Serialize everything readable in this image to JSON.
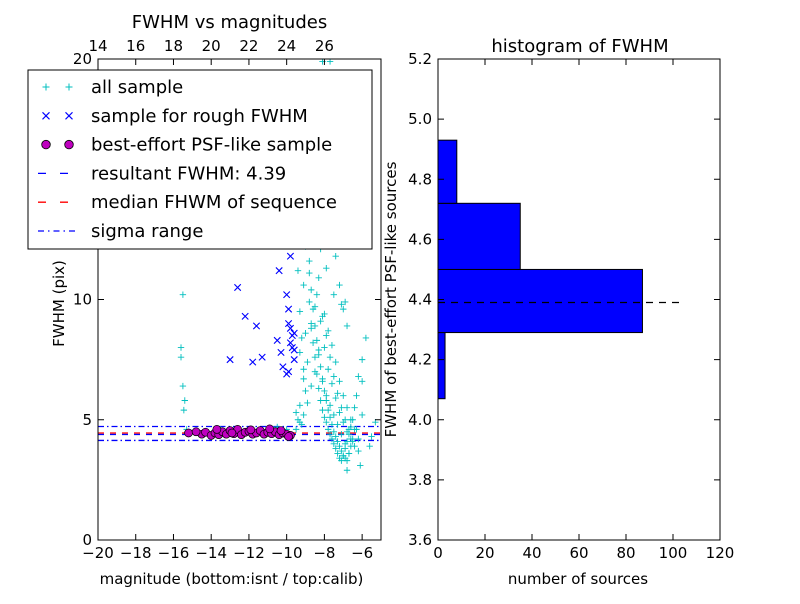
{
  "chart_data": [
    {
      "type": "scatter",
      "title": "FWHM vs magnitudes",
      "xlabel": "magnitude (bottom:isnt / top:calib)",
      "ylabel": "FWHM (pix)",
      "xlim": [
        -20,
        -5
      ],
      "ylim": [
        0,
        20
      ],
      "x_ticks": [
        -20,
        -18,
        -16,
        -14,
        -12,
        -10,
        -8,
        -6
      ],
      "x_tick_labels": [
        "−20",
        "−18",
        "−16",
        "−14",
        "−12",
        "−10",
        "−8",
        "−6"
      ],
      "y_ticks": [
        0,
        5,
        10,
        20
      ],
      "y_tick_labels": [
        "0",
        "5",
        "10",
        "20"
      ],
      "top_ticks": [
        14,
        16,
        18,
        20,
        22,
        24,
        26
      ],
      "top_tick_labels": [
        "14",
        "16",
        "18",
        "20",
        "22",
        "24",
        "26"
      ],
      "top_axis_offset": 34,
      "legend": {
        "placement": "upper-left",
        "entries": [
          {
            "label": "all sample",
            "marker": "+",
            "color": "#00bfbf"
          },
          {
            "label": "sample for rough FWHM",
            "marker": "x",
            "color": "#0000ff"
          },
          {
            "label": "best-effort PSF-like sample",
            "marker": "o",
            "color": "#bf00bf"
          },
          {
            "label": "resultant FWHM: 4.39",
            "style": "dashed",
            "color": "#0000ff"
          },
          {
            "label": "median FHWM of sequence",
            "style": "dashed",
            "color": "#ff0000"
          },
          {
            "label": "sigma range",
            "style": "dashdot",
            "color": "#0000ff"
          }
        ]
      },
      "hlines": [
        {
          "y": 4.39,
          "style": "dashed",
          "color": "#0000ff"
        },
        {
          "y": 4.45,
          "style": "dashed",
          "color": "#ff0000"
        },
        {
          "y": 4.72,
          "style": "dashdot",
          "color": "#0000ff"
        },
        {
          "y": 4.14,
          "style": "dashdot",
          "color": "#0000ff"
        }
      ],
      "series": [
        {
          "name": "all sample",
          "marker": "+",
          "color": "#00bfbf",
          "x": [
            -15.6,
            -15.6,
            -15.5,
            -15.45,
            -15.4,
            -15.5,
            -15.3,
            -14.9,
            -14.3,
            -13.5,
            -12.8,
            -12.0,
            -11.3,
            -10.5,
            -10.0,
            -9.6,
            -9.5,
            -9.4,
            -9.3,
            -9.2,
            -9.1,
            -9.0,
            -9.3,
            -9.5,
            -9.4,
            -9.2,
            -9.1,
            -9.0,
            -8.9,
            -8.8,
            -8.8,
            -8.7,
            -8.6,
            -8.5,
            -8.4,
            -8.3,
            -8.2,
            -8.1,
            -8.0,
            -7.9,
            -7.8,
            -7.7,
            -7.6,
            -7.5,
            -7.4,
            -7.3,
            -7.2,
            -7.1,
            -7.0,
            -6.9,
            -6.8,
            -6.7,
            -6.6,
            -6.5,
            -6.4,
            -6.3,
            -6.2,
            -6.0,
            -5.8,
            -5.5,
            -9.4,
            -9.2,
            -9.0,
            -8.9,
            -8.8,
            -8.7,
            -8.6,
            -8.5,
            -8.4,
            -8.3,
            -8.2,
            -8.1,
            -8.0,
            -7.9,
            -7.8,
            -7.7,
            -7.6,
            -7.5,
            -7.4,
            -7.3,
            -7.2,
            -7.1,
            -7.0,
            -6.9,
            -6.8,
            -6.7,
            -6.6,
            -6.5,
            -6.3,
            -6.0,
            -9.3,
            -9.0,
            -8.8,
            -8.6,
            -8.4,
            -8.2,
            -8.0,
            -7.8,
            -7.6,
            -7.4,
            -7.2,
            -7.0,
            -6.8,
            -6.6,
            -6.4,
            -9.1,
            -8.9,
            -8.7,
            -8.5,
            -8.3,
            -8.1,
            -7.9,
            -7.7,
            -7.5,
            -7.3,
            -7.1,
            -6.9,
            -6.7,
            -6.5,
            -6.2,
            -9.5,
            -9.3,
            -9.1,
            -8.9,
            -8.7,
            -8.5,
            -8.3,
            -8.1,
            -7.9,
            -7.7,
            -7.5,
            -7.3,
            -7.1,
            -6.9,
            -6.7,
            -8.0,
            -7.8,
            -7.6,
            -7.4,
            -7.2,
            -7.0,
            -6.8,
            -6.6,
            -6.4,
            -6.2,
            -8.2,
            -7.9,
            -7.5,
            -7.1,
            -6.9,
            -8.6,
            -8.4,
            -8.2,
            -8.0,
            -7.8,
            -7.6,
            -7.4,
            -7.2,
            -7.0,
            -6.8,
            -6.0,
            -5.6,
            -5.3,
            -6.1,
            -6.8,
            -8.1,
            -7.7,
            -7.3
          ],
          "y": [
            8.0,
            7.6,
            6.4,
            5.4,
            5.8,
            10.2,
            4.6,
            4.5,
            4.5,
            4.6,
            4.5,
            4.6,
            4.5,
            4.7,
            4.6,
            12.5,
            13.8,
            11.2,
            9.5,
            8.4,
            7.1,
            6.2,
            5.6,
            5.3,
            5.0,
            4.8,
            10.6,
            12.2,
            14.8,
            13.1,
            9.9,
            9.0,
            8.2,
            7.6,
            6.9,
            6.3,
            5.8,
            5.4,
            5.1,
            4.9,
            4.6,
            4.4,
            4.2,
            4.0,
            3.8,
            3.6,
            3.4,
            3.3,
            3.5,
            3.8,
            4.1,
            4.4,
            4.7,
            5.0,
            5.5,
            6.0,
            6.8,
            7.5,
            8.4,
            4.3,
            15.1,
            16.2,
            13.6,
            12.3,
            11.1,
            10.4,
            9.6,
            8.9,
            8.3,
            7.7,
            7.2,
            6.7,
            6.2,
            5.8,
            5.4,
            5.1,
            4.8,
            4.5,
            4.3,
            4.1,
            3.9,
            3.7,
            3.5,
            3.4,
            3.3,
            3.6,
            3.9,
            4.2,
            4.6,
            5.2,
            7.8,
            8.6,
            11.6,
            12.8,
            10.2,
            9.1,
            8.0,
            7.1,
            6.5,
            5.9,
            5.3,
            4.9,
            4.5,
            4.2,
            3.9,
            6.7,
            7.4,
            8.8,
            9.7,
            10.9,
            9.3,
            8.5,
            7.6,
            6.8,
            6.1,
            5.5,
            5.0,
            4.6,
            4.1,
            3.7,
            4.6,
            4.9,
            5.2,
            5.7,
            6.4,
            7.0,
            7.9,
            6.6,
            6.0,
            5.6,
            5.2,
            4.8,
            4.4,
            4.0,
            3.6,
            9.4,
            8.7,
            8.1,
            7.4,
            6.6,
            6.0,
            5.5,
            5.0,
            4.6,
            4.2,
            12.1,
            11.3,
            10.2,
            9.8,
            9.9,
            17.5,
            18.6,
            16.4,
            15.2,
            13.4,
            12.7,
            11.8,
            10.6,
            9.6,
            8.9,
            6.6,
            3.9,
            4.9,
            3.1,
            2.9,
            19.9,
            19.9,
            14.2
          ]
        },
        {
          "name": "sample for rough FWHM",
          "marker": "x",
          "color": "#0000ff",
          "x": [
            -12.6,
            -12.2,
            -11.6,
            -11.4,
            -11.0,
            -10.6,
            -10.4,
            -10.0,
            -9.9,
            -9.8,
            -9.7,
            -9.7,
            -9.6,
            -9.6,
            -9.9,
            -10.2,
            -11.3,
            -11.8,
            -13.0,
            -10.5,
            -9.8,
            -9.7,
            -10.1,
            -9.9,
            -11.1,
            -10.8,
            -9.6,
            -10.3,
            -9.8,
            -10.0
          ],
          "y": [
            10.5,
            9.3,
            8.9,
            12.8,
            14.6,
            13.0,
            11.2,
            10.2,
            9.6,
            8.8,
            8.5,
            8.0,
            7.9,
            7.5,
            7.0,
            7.2,
            7.6,
            7.4,
            7.5,
            8.3,
            11.8,
            14.3,
            12.5,
            9.0,
            12.9,
            14.5,
            8.6,
            7.8,
            8.2,
            6.9
          ]
        },
        {
          "name": "best-effort PSF-like sample",
          "marker": "o",
          "color": "#bf00bf",
          "x": [
            -15.2,
            -14.5,
            -14.3,
            -14.0,
            -13.8,
            -13.6,
            -13.4,
            -13.2,
            -13.0,
            -12.8,
            -12.6,
            -12.4,
            -12.2,
            -12.0,
            -11.8,
            -11.6,
            -11.4,
            -11.2,
            -11.0,
            -10.8,
            -10.6,
            -10.4,
            -10.2,
            -10.0,
            -9.8,
            -14.8,
            -13.7,
            -12.9,
            -11.9,
            -10.9,
            -10.3,
            -9.9
          ],
          "y": [
            4.45,
            4.4,
            4.48,
            4.35,
            4.45,
            4.38,
            4.5,
            4.4,
            4.55,
            4.42,
            4.6,
            4.38,
            4.48,
            4.52,
            4.4,
            4.45,
            4.55,
            4.4,
            4.48,
            4.42,
            4.5,
            4.38,
            4.45,
            4.4,
            4.35,
            4.5,
            4.6,
            4.45,
            4.58,
            4.62,
            4.55,
            4.3
          ]
        }
      ]
    },
    {
      "type": "bar",
      "orientation": "horizontal",
      "title": "histogram of FWHM",
      "xlabel": "number of sources",
      "ylabel": "FWHM of best-effort PSF-like sources",
      "xlim": [
        0,
        120
      ],
      "ylim": [
        3.6,
        5.2
      ],
      "x_ticks": [
        0,
        20,
        40,
        60,
        80,
        100,
        120
      ],
      "x_tick_labels": [
        "0",
        "20",
        "40",
        "60",
        "80",
        "100",
        "120"
      ],
      "y_ticks": [
        3.6,
        3.8,
        4.0,
        4.2,
        4.4,
        4.6,
        4.8,
        5.0,
        5.2
      ],
      "y_tick_labels": [
        "3.6",
        "3.8",
        "4.0",
        "4.2",
        "4.4",
        "4.6",
        "4.8",
        "5.0",
        "5.2"
      ],
      "color": "#0000ff",
      "bins": [
        {
          "y0": 4.07,
          "y1": 4.29,
          "count": 3
        },
        {
          "y0": 4.29,
          "y1": 4.5,
          "count": 87
        },
        {
          "y0": 4.5,
          "y1": 4.72,
          "count": 35
        },
        {
          "y0": 4.72,
          "y1": 4.93,
          "count": 8
        }
      ],
      "hline": {
        "y": 4.39,
        "x0": 0,
        "x1": 103,
        "style": "dashed",
        "color": "#000000"
      }
    }
  ]
}
